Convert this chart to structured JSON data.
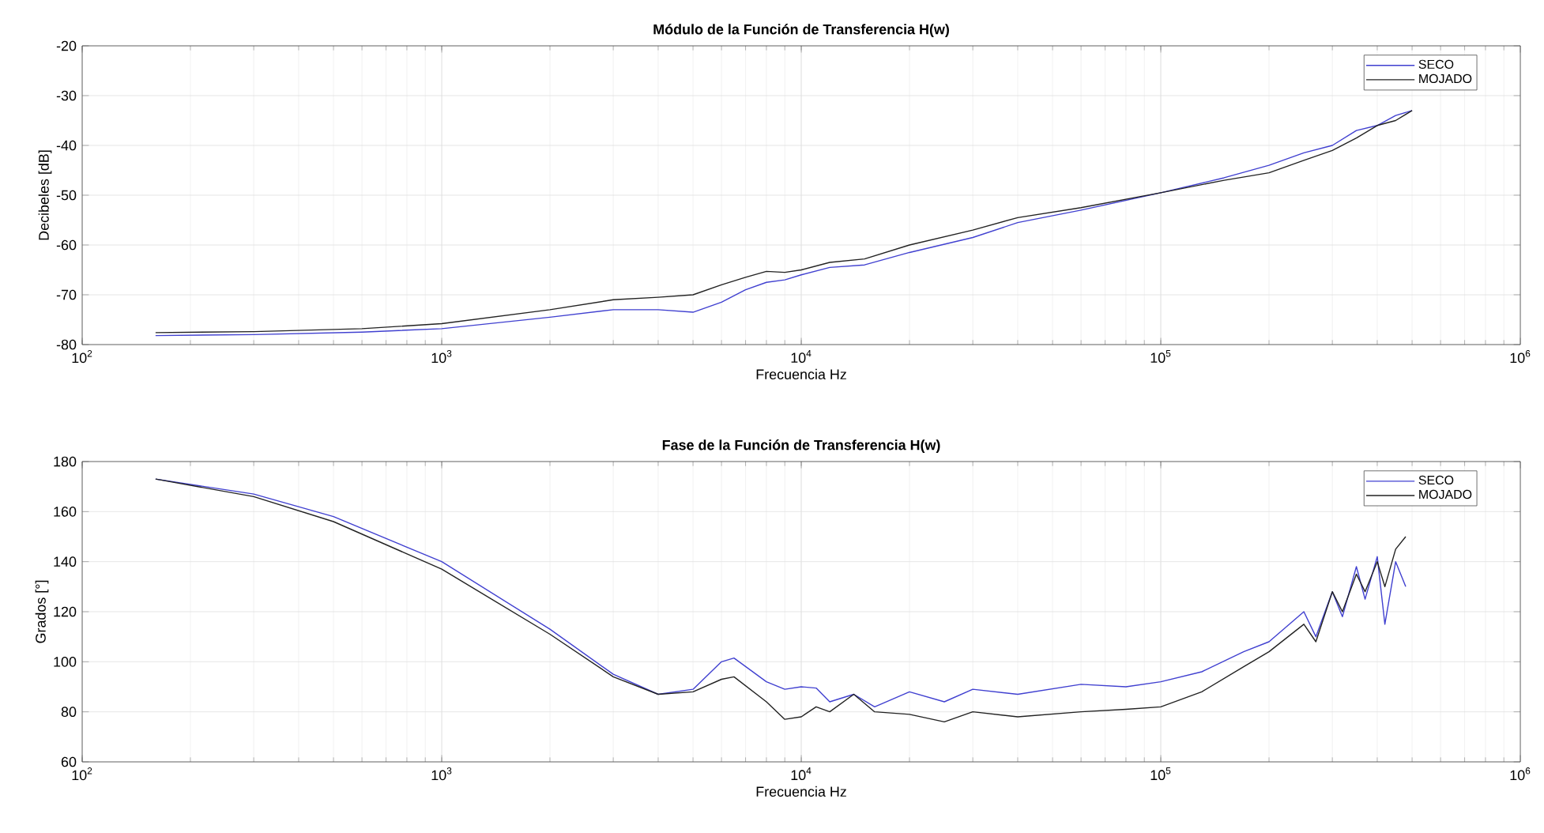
{
  "chart_data": [
    {
      "type": "line",
      "title": "Módulo de la Función de Transferencia H(w)",
      "xlabel": "Frecuencia Hz",
      "ylabel": "Decibeles [dB]",
      "log": "x",
      "grid": true,
      "legend": "top right",
      "xlim": [
        100,
        1000000
      ],
      "xticks": [
        {
          "value": 100,
          "label": "10$^{2}$"
        },
        {
          "value": 1000,
          "label": "10$^{3}$"
        },
        {
          "value": 10000,
          "label": "10$^{4}$"
        },
        {
          "value": 100000,
          "label": "10$^{5}$"
        },
        {
          "value": 1000000,
          "label": "10$^{6}$"
        }
      ],
      "ylim": [
        -80,
        -20
      ],
      "yticks": [
        -80,
        -70,
        -60,
        -50,
        -40,
        -30,
        -20
      ],
      "x": [
        160,
        300,
        600,
        1000,
        2000,
        3000,
        4000,
        5000,
        6000,
        7000,
        8000,
        9000,
        10000,
        12000,
        15000,
        20000,
        30000,
        40000,
        60000,
        100000,
        150000,
        200000,
        250000,
        300000,
        350000,
        400000,
        450000,
        500000
      ],
      "series": [
        {
          "name": "SECO",
          "color": "#4040d0",
          "values": [
            -78.2,
            -78,
            -77.5,
            -76.8,
            -74.5,
            -73,
            -73,
            -73.5,
            -71.5,
            -69,
            -67.5,
            -67,
            -66,
            -64.5,
            -64,
            -61.5,
            -58.5,
            -55.5,
            -53,
            -49.5,
            -46.5,
            -44,
            -41.5,
            -40,
            -37,
            -36,
            -34,
            -33
          ]
        },
        {
          "name": "MOJADO",
          "color": "#222222",
          "values": [
            -77.6,
            -77.4,
            -76.8,
            -75.8,
            -73,
            -71,
            -70.5,
            -70,
            -68,
            -66.5,
            -65.3,
            -65.5,
            -65,
            -63.5,
            -62.8,
            -60,
            -57,
            -54.5,
            -52.5,
            -49.5,
            -47,
            -45.5,
            -43,
            -41,
            -38.5,
            -36,
            -35,
            -33
          ]
        }
      ]
    },
    {
      "type": "line",
      "title": "Fase de la Función de Transferencia H(w)",
      "xlabel": "Frecuencia Hz",
      "ylabel": "Grados [°]",
      "log": "x",
      "grid": true,
      "legend": "top right",
      "xlim": [
        100,
        1000000
      ],
      "xticks": [
        {
          "value": 100,
          "label": "10$^{2}$"
        },
        {
          "value": 1000,
          "label": "10$^{3}$"
        },
        {
          "value": 10000,
          "label": "10$^{4}$"
        },
        {
          "value": 100000,
          "label": "10$^{5}$"
        },
        {
          "value": 1000000,
          "label": "10$^{6}$"
        }
      ],
      "ylim": [
        60,
        180
      ],
      "yticks": [
        60,
        80,
        100,
        120,
        140,
        160,
        180
      ],
      "x": [
        160,
        300,
        500,
        1000,
        2000,
        3000,
        4000,
        5000,
        6000,
        6500,
        8000,
        9000,
        10000,
        11000,
        12000,
        14000,
        16000,
        20000,
        25000,
        30000,
        40000,
        60000,
        80000,
        100000,
        130000,
        170000,
        200000,
        250000,
        270000,
        300000,
        320000,
        350000,
        370000,
        400000,
        420000,
        450000,
        480000
      ],
      "series": [
        {
          "name": "SECO",
          "color": "#4040d0",
          "values": [
            173,
            167,
            158,
            140,
            113,
            95,
            87,
            89,
            100,
            101.5,
            92,
            89,
            90,
            89.5,
            84,
            87,
            82,
            88,
            84,
            89,
            87,
            91,
            90,
            92,
            96,
            104,
            108,
            120,
            110,
            128,
            118,
            138,
            125,
            142,
            115,
            140,
            130
          ]
        },
        {
          "name": "MOJADO",
          "color": "#222222",
          "values": [
            173,
            166,
            156,
            137,
            111,
            94,
            87,
            88,
            93,
            94,
            84,
            77,
            78,
            82,
            80,
            87,
            80,
            79,
            76,
            80,
            78,
            80,
            81,
            82,
            88,
            98,
            104,
            115,
            108,
            128,
            120,
            135,
            128,
            140,
            130,
            145,
            150
          ]
        }
      ]
    }
  ]
}
